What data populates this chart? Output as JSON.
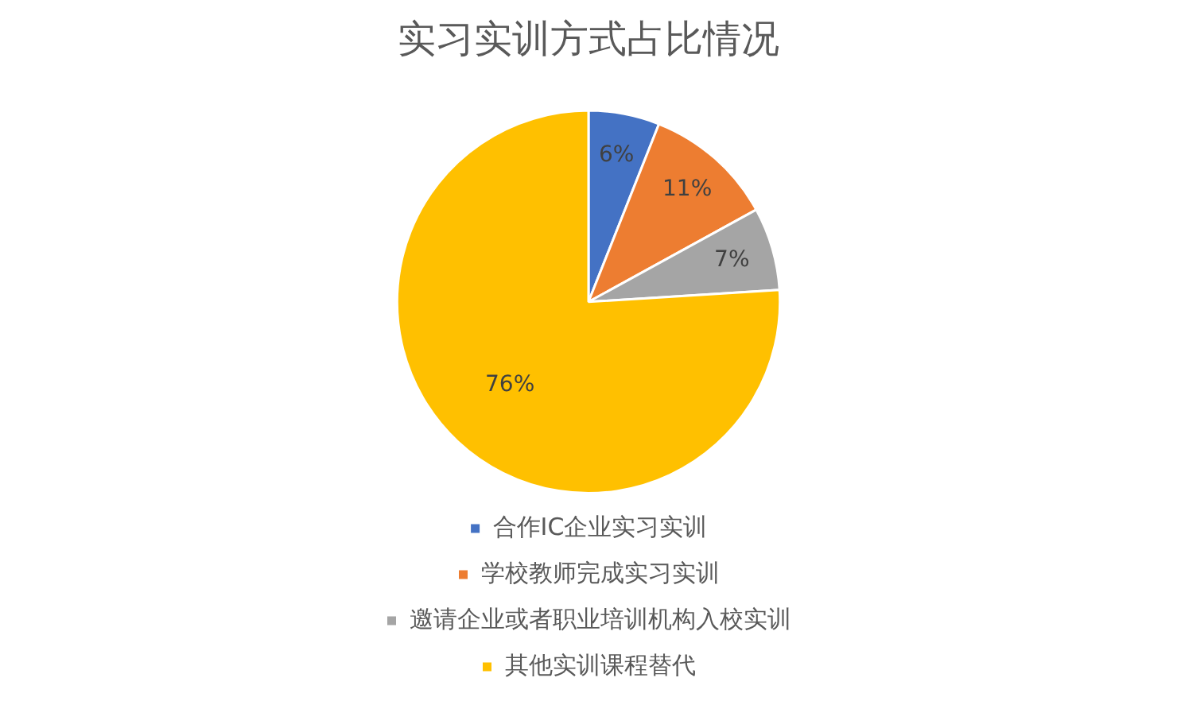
{
  "chart_data": {
    "type": "pie",
    "title": "实习实训方式占比情况",
    "categories": [
      "合作IC企业实习实训",
      "学校教师完成实习实训",
      "邀请企业或者职业培训机构入校实训",
      "其他实训课程替代"
    ],
    "values": [
      6,
      11,
      7,
      76
    ],
    "colors": [
      "#4472c4",
      "#ed7d31",
      "#a5a5a5",
      "#ffc000"
    ],
    "value_labels": [
      "6%",
      "11%",
      "7%",
      "76%"
    ],
    "legend": "bottom"
  }
}
